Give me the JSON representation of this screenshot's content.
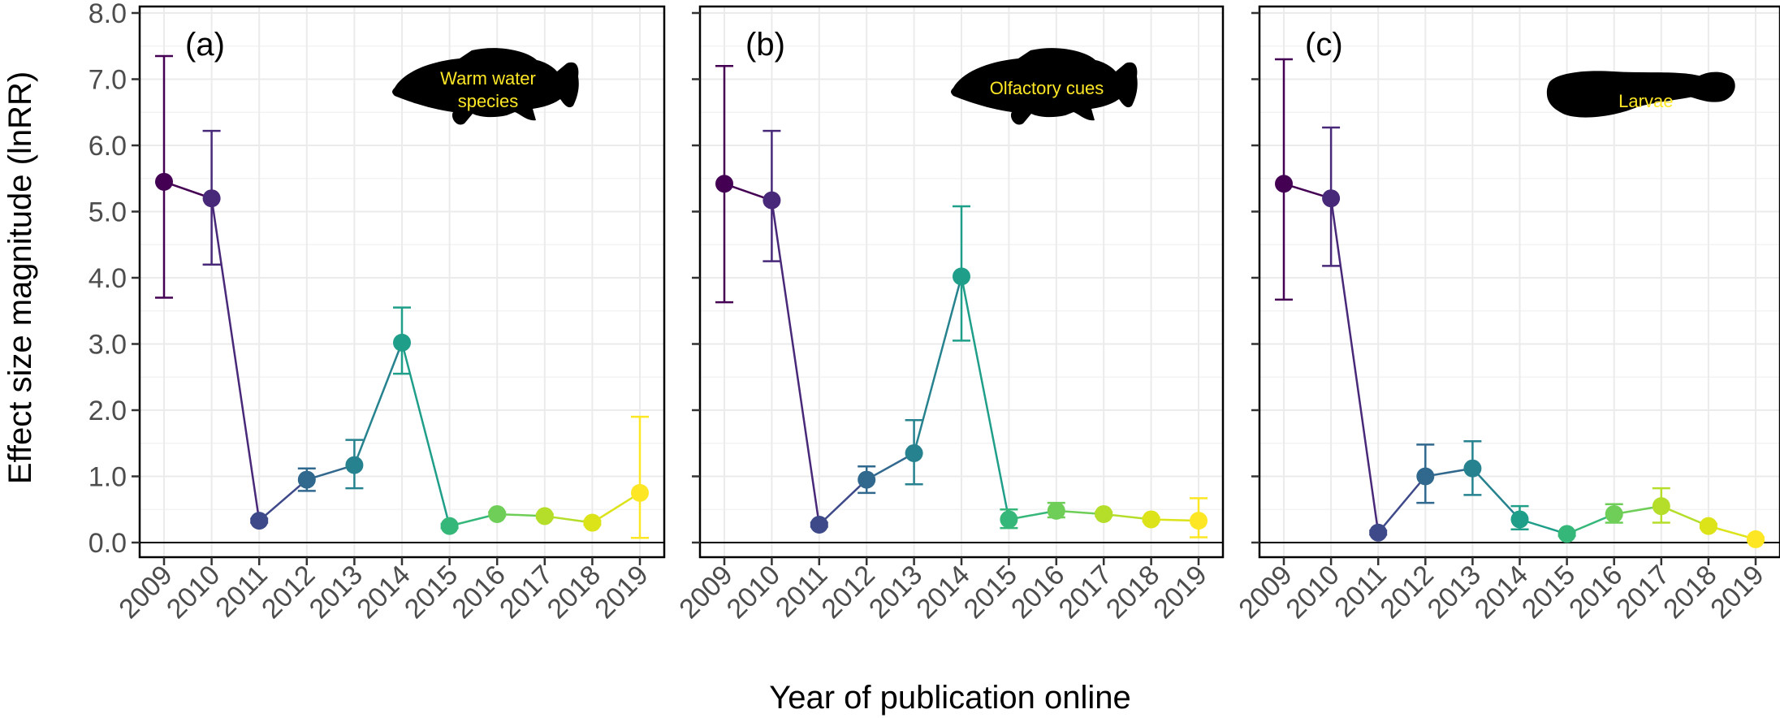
{
  "chart_data": [
    {
      "type": "line",
      "panel_label": "(a)",
      "annotation": [
        "Warm water",
        "species"
      ],
      "silhouette": "tilapia-icon",
      "x": [
        2009,
        2010,
        2011,
        2012,
        2013,
        2014,
        2015,
        2016,
        2017,
        2018,
        2019
      ],
      "y": [
        5.45,
        5.2,
        0.33,
        0.95,
        1.17,
        3.02,
        0.25,
        0.43,
        0.4,
        0.3,
        0.75
      ],
      "err_low": [
        3.7,
        4.2,
        0.3,
        0.78,
        0.82,
        2.55,
        0.22,
        0.4,
        0.37,
        0.27,
        0.07
      ],
      "err_high": [
        7.35,
        6.22,
        0.36,
        1.12,
        1.55,
        3.55,
        0.28,
        0.46,
        0.43,
        0.33,
        1.9
      ]
    },
    {
      "type": "line",
      "panel_label": "(b)",
      "annotation": [
        "Olfactory cues"
      ],
      "silhouette": "tilapia-icon",
      "x": [
        2009,
        2010,
        2011,
        2012,
        2013,
        2014,
        2015,
        2016,
        2017,
        2018,
        2019
      ],
      "y": [
        5.42,
        5.17,
        0.27,
        0.95,
        1.35,
        4.02,
        0.35,
        0.48,
        0.43,
        0.35,
        0.33
      ],
      "err_low": [
        3.63,
        4.25,
        0.24,
        0.75,
        0.88,
        3.05,
        0.22,
        0.38,
        0.4,
        0.32,
        0.08
      ],
      "err_high": [
        7.2,
        6.22,
        0.3,
        1.15,
        1.85,
        5.08,
        0.5,
        0.6,
        0.46,
        0.38,
        0.67
      ]
    },
    {
      "type": "line",
      "panel_label": "(c)",
      "annotation": [
        "Larvae"
      ],
      "silhouette": "larva-icon",
      "x": [
        2009,
        2010,
        2011,
        2012,
        2013,
        2014,
        2015,
        2016,
        2017,
        2018,
        2019
      ],
      "y": [
        5.42,
        5.2,
        0.15,
        1.0,
        1.12,
        0.35,
        0.13,
        0.43,
        0.55,
        0.25,
        0.05
      ],
      "err_low": [
        3.67,
        4.18,
        0.12,
        0.6,
        0.72,
        0.2,
        0.1,
        0.3,
        0.3,
        0.22,
        0.02
      ],
      "err_high": [
        7.3,
        6.27,
        0.18,
        1.48,
        1.53,
        0.55,
        0.16,
        0.58,
        0.82,
        0.28,
        0.08
      ]
    }
  ],
  "axes": {
    "ylabel": "Effect size magnitude (lnRR)",
    "xlabel": "Year of publication online",
    "ylim": [
      0,
      8
    ],
    "yticks": [
      "0.0",
      "1.0",
      "2.0",
      "3.0",
      "4.0",
      "5.0",
      "6.0",
      "7.0",
      "8.0"
    ],
    "grid": true
  },
  "colors": [
    "#440154",
    "#482878",
    "#3e4989",
    "#31688e",
    "#26828e",
    "#1f9e89",
    "#35b779",
    "#6ece58",
    "#b5de2b",
    "#dce319",
    "#fde725"
  ]
}
